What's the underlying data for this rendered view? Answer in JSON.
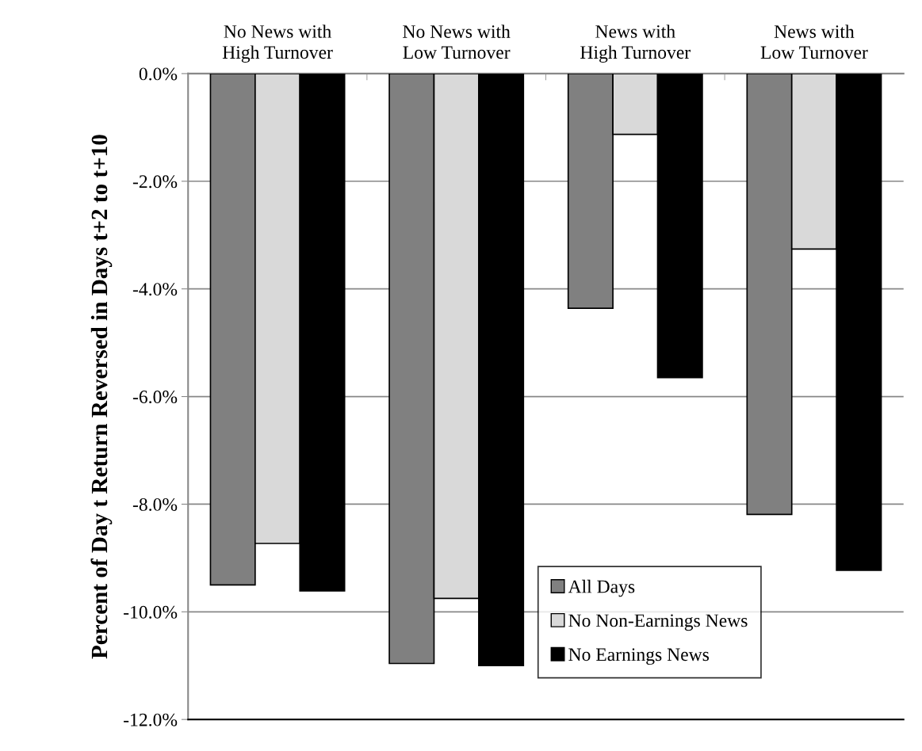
{
  "chart_data": {
    "type": "bar",
    "ylabel": "Percent of Day t Return Reversed in Days t+2 to t+10",
    "categories": [
      "No News with High Turnover",
      "No News with Low Turnover",
      "News with High Turnover",
      "News with Low Turnover"
    ],
    "series": [
      {
        "name": "All Days",
        "color": "#808080",
        "values": [
          -9.5,
          -10.96,
          -4.36,
          -8.19
        ]
      },
      {
        "name": "No Non-Earnings News",
        "color": "#d9d9d9",
        "values": [
          -8.73,
          -9.75,
          -1.13,
          -3.26
        ]
      },
      {
        "name": "No Earnings News",
        "color": "#000000",
        "values": [
          -9.61,
          -11.0,
          -5.65,
          -9.23
        ]
      }
    ],
    "ylim": [
      -12,
      0
    ],
    "yticks": [
      {
        "value": 0,
        "label": "0.0%"
      },
      {
        "value": -2,
        "label": "-2.0%"
      },
      {
        "value": -4,
        "label": "-4.0%"
      },
      {
        "value": -6,
        "label": "-6.0%"
      },
      {
        "value": -8,
        "label": "-8.0%"
      },
      {
        "value": -10,
        "label": "-10.0%"
      },
      {
        "value": -12,
        "label": "-12.0%"
      }
    ],
    "grid": "y",
    "legend": "bottom"
  }
}
